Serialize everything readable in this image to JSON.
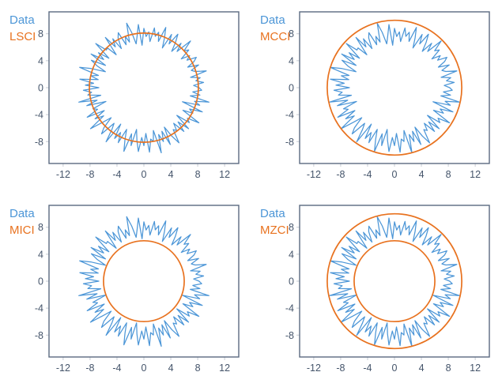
{
  "figure": {
    "description": "Comparison of circle fitting methods on noisy circular data",
    "panel_count": 4
  },
  "colors": {
    "data_line": "#4C96D7",
    "fit_line": "#E8721F",
    "frame": "#5A6A80",
    "tick_mark": "#C6CBD3",
    "tick_label": "#44546A",
    "background": "#FFFFFF"
  },
  "chart_data": {
    "type": "line",
    "coordinate_system": "polar data rendered on cartesian axes",
    "grid": false,
    "legend_position": "outside top-left of each panel",
    "axes": {
      "xlim": [
        -14.1,
        14.1
      ],
      "ylim": [
        -11.25,
        11.25
      ],
      "x_ticks": [
        -12,
        -8,
        -4,
        0,
        4,
        8,
        12
      ],
      "y_ticks": [
        8,
        4,
        0,
        -4,
        -8
      ],
      "xlabel": "",
      "ylabel": ""
    },
    "data_series": {
      "name": "Data",
      "theta_start_deg": 0,
      "theta_step_deg": 2.5,
      "closed": true,
      "radii": [
        8.2,
        7.4,
        8.9,
        7.8,
        8.5,
        7.1,
        9.6,
        8.0,
        7.5,
        8.8,
        7.2,
        8.4,
        9.0,
        7.6,
        8.3,
        7.0,
        8.7,
        8.1,
        9.8,
        7.3,
        8.6,
        6.8,
        8.2,
        9.4,
        7.5,
        8.9,
        6.5,
        8.0,
        9.5,
        7.2,
        8.5,
        7.8,
        9.0,
        6.9,
        8.3,
        7.6,
        8.8,
        6.3,
        9.4,
        7.7,
        6.6,
        8.4,
        9.9,
        7.1,
        8.1,
        6.9,
        9.0,
        8.3,
        6.7,
        8.6,
        7.4,
        9.4,
        6.4,
        8.0,
        7.9,
        9.7,
        6.8,
        8.5,
        7.3,
        9.3,
        6.6,
        8.8,
        7.7,
        6.2,
        8.3,
        10.0,
        7.0,
        8.1,
        6.9,
        9.6,
        7.5,
        8.7,
        6.7,
        9.0,
        7.8,
        8.4,
        6.5,
        9.9,
        7.2,
        8.9,
        6.0,
        8.2,
        7.6,
        9.5,
        6.8,
        8.6,
        7.3,
        10.0,
        8.0,
        6.6,
        8.4,
        9.3,
        6.9,
        7.8,
        9.8,
        6.4,
        8.7,
        7.5,
        9.0,
        6.7,
        8.2,
        9.9,
        7.1,
        8.8,
        6.3,
        7.9,
        9.5,
        7.4,
        8.6,
        6.8,
        9.6,
        7.7,
        8.1,
        6.5,
        10.0,
        7.3,
        8.5,
        7.0,
        9.3,
        6.6,
        8.3,
        9.7,
        7.6,
        8.0,
        6.9,
        8.8,
        7.2,
        9.0,
        6.4,
        8.5,
        7.9,
        9.7,
        6.7,
        8.2,
        7.5,
        9.4,
        6.1,
        8.7,
        7.8,
        9.9,
        7.0,
        8.4,
        7.3,
        8.6
      ]
    },
    "panels": [
      {
        "position": "top-left",
        "series_label": "Data",
        "method_label": "LSCI",
        "fit_circles": [
          8.1
        ],
        "fit_circle_center": [
          0,
          0
        ]
      },
      {
        "position": "top-right",
        "series_label": "Data",
        "method_label": "MCCI",
        "fit_circles": [
          10.0
        ],
        "fit_circle_center": [
          0,
          0
        ]
      },
      {
        "position": "bottom-left",
        "series_label": "Data",
        "method_label": "MICI",
        "fit_circles": [
          6.0
        ],
        "fit_circle_center": [
          0,
          0
        ]
      },
      {
        "position": "bottom-right",
        "series_label": "Data",
        "method_label": "MZCI",
        "fit_circles": [
          10.0,
          6.0
        ],
        "fit_circle_center": [
          0,
          0
        ]
      }
    ]
  }
}
